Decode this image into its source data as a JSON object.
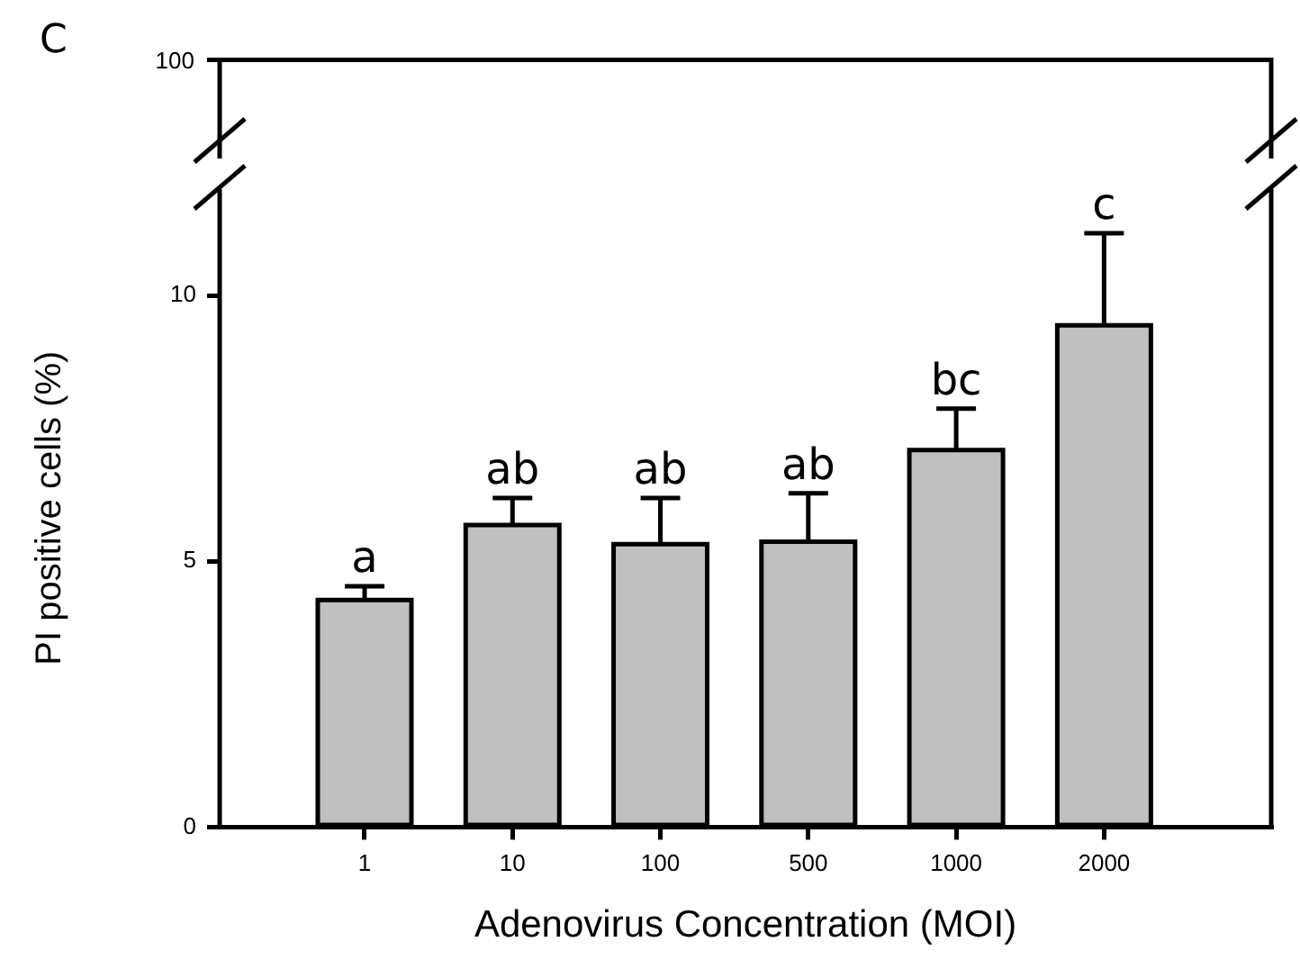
{
  "chart_data": [
    {
      "type": "other",
      "title": "C",
      "annotations": [
        "100"
      ]
    },
    {
      "type": "bar",
      "xlabel": "Adenovirus Concentration (MOI)",
      "ylabel": "PI positive cells (%)",
      "categories": [
        "1",
        "10",
        "100",
        "500",
        "1000",
        "2000"
      ],
      "values": [
        4.27,
        5.68,
        5.32,
        5.37,
        7.09,
        9.44
      ],
      "color": "#c0c0c0",
      "errors": [
        [
          4.27,
          4.53
        ],
        [
          5.68,
          6.19
        ],
        [
          5.32,
          6.19
        ],
        [
          5.37,
          6.28
        ],
        [
          7.09,
          7.87
        ],
        [
          9.44,
          11.17
        ]
      ],
      "ylim": [
        0,
        12
      ],
      "yticks": [
        0,
        5,
        10
      ],
      "annotations": [
        {
          "text": "a",
          "x": "1",
          "y": 4.53
        },
        {
          "text": "ab",
          "x": "10",
          "y": 6.19
        },
        {
          "text": "ab",
          "x": "100",
          "y": 6.19
        },
        {
          "text": "ab",
          "x": "500",
          "y": 6.28
        },
        {
          "text": "bc",
          "x": "1000",
          "y": 7.87
        },
        {
          "text": "c",
          "x": "2000",
          "y": 11.17
        }
      ]
    }
  ]
}
